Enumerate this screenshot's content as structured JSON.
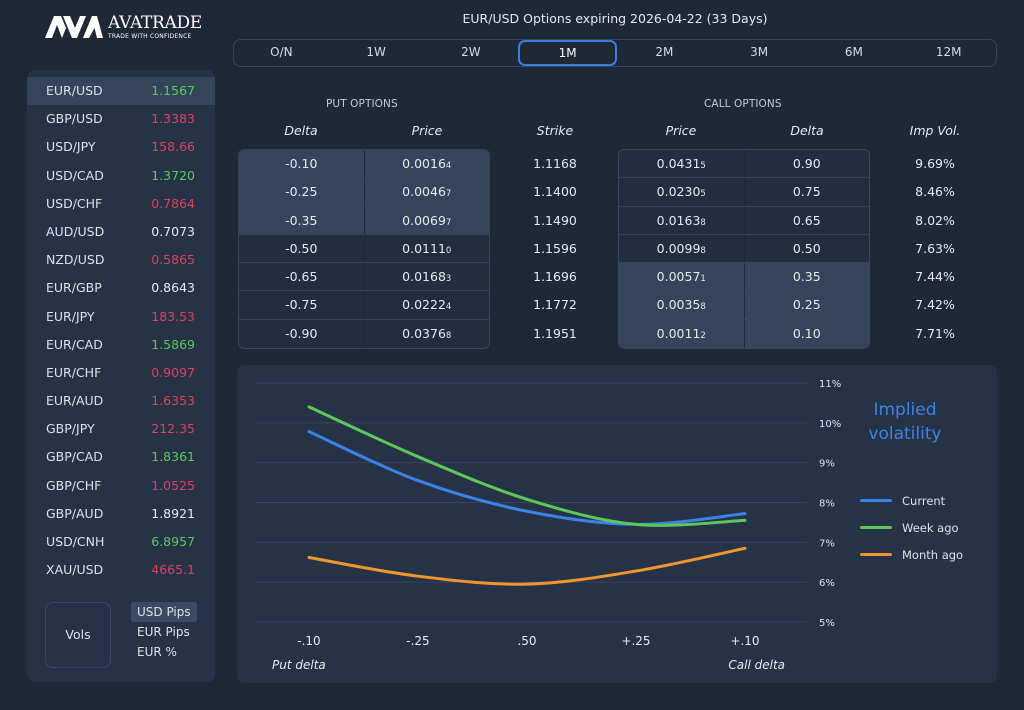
{
  "brand": {
    "name": "AVATRADE",
    "tagline": "TRADE WITH CONFIDENCE",
    "logo_icon": "ava-logo-icon"
  },
  "header": {
    "title": "EUR/USD Options expiring 2026-04-22 (33 Days)"
  },
  "tenors": {
    "items": [
      "O/N",
      "1W",
      "2W",
      "1M",
      "2M",
      "3M",
      "6M",
      "12M"
    ],
    "selected": "1M"
  },
  "colors": {
    "accent": "#3c7ee0",
    "up": "#5cc85a",
    "down": "#e0405a",
    "current": "#3c82e6",
    "week_ago": "#5cc85a",
    "month_ago": "#f0962e"
  },
  "sidebar": {
    "pairs": [
      {
        "name": "EUR/USD",
        "price": "1.1567",
        "trend": "up",
        "active": true
      },
      {
        "name": "GBP/USD",
        "price": "1.3383",
        "trend": "down"
      },
      {
        "name": "USD/JPY",
        "price": "158.66",
        "trend": "down"
      },
      {
        "name": "USD/CAD",
        "price": "1.3720",
        "trend": "up"
      },
      {
        "name": "USD/CHF",
        "price": "0.7864",
        "trend": "down"
      },
      {
        "name": "AUD/USD",
        "price": "0.7073",
        "trend": "flat"
      },
      {
        "name": "NZD/USD",
        "price": "0.5865",
        "trend": "down"
      },
      {
        "name": "EUR/GBP",
        "price": "0.8643",
        "trend": "flat"
      },
      {
        "name": "EUR/JPY",
        "price": "183.53",
        "trend": "down"
      },
      {
        "name": "EUR/CAD",
        "price": "1.5869",
        "trend": "up"
      },
      {
        "name": "EUR/CHF",
        "price": "0.9097",
        "trend": "down"
      },
      {
        "name": "EUR/AUD",
        "price": "1.6353",
        "trend": "down"
      },
      {
        "name": "GBP/JPY",
        "price": "212.35",
        "trend": "down"
      },
      {
        "name": "GBP/CAD",
        "price": "1.8361",
        "trend": "up"
      },
      {
        "name": "GBP/CHF",
        "price": "1.0525",
        "trend": "down"
      },
      {
        "name": "GBP/AUD",
        "price": "1.8921",
        "trend": "flat"
      },
      {
        "name": "USD/CNH",
        "price": "6.8957",
        "trend": "up"
      },
      {
        "name": "XAU/USD",
        "price": "4665.1",
        "trend": "down"
      }
    ],
    "vols_label": "Vols",
    "units": [
      {
        "label": "USD Pips",
        "active": true
      },
      {
        "label": "EUR Pips"
      },
      {
        "label": "EUR %"
      }
    ]
  },
  "options": {
    "put_title": "PUT OPTIONS",
    "call_title": "CALL OPTIONS",
    "headers": {
      "put_delta": "Delta",
      "put_price": "Price",
      "strike": "Strike",
      "call_price": "Price",
      "call_delta": "Delta",
      "imp_vol": "Imp Vol."
    },
    "rows": [
      {
        "put_delta": "-0.10",
        "put_price": "0.0016",
        "put_price_pip": "4",
        "strike": "1.1168",
        "call_price": "0.0431",
        "call_price_pip": "5",
        "call_delta": "0.90",
        "imp_vol": "9.69%"
      },
      {
        "put_delta": "-0.25",
        "put_price": "0.0046",
        "put_price_pip": "7",
        "strike": "1.1400",
        "call_price": "0.0230",
        "call_price_pip": "5",
        "call_delta": "0.75",
        "imp_vol": "8.46%"
      },
      {
        "put_delta": "-0.35",
        "put_price": "0.0069",
        "put_price_pip": "7",
        "strike": "1.1490",
        "call_price": "0.0163",
        "call_price_pip": "8",
        "call_delta": "0.65",
        "imp_vol": "8.02%"
      },
      {
        "put_delta": "-0.50",
        "put_price": "0.0111",
        "put_price_pip": "0",
        "strike": "1.1596",
        "call_price": "0.0099",
        "call_price_pip": "8",
        "call_delta": "0.50",
        "imp_vol": "7.63%"
      },
      {
        "put_delta": "-0.65",
        "put_price": "0.0168",
        "put_price_pip": "3",
        "strike": "1.1696",
        "call_price": "0.0057",
        "call_price_pip": "1",
        "call_delta": "0.35",
        "imp_vol": "7.44%"
      },
      {
        "put_delta": "-0.75",
        "put_price": "0.0222",
        "put_price_pip": "4",
        "strike": "1.1772",
        "call_price": "0.0035",
        "call_price_pip": "8",
        "call_delta": "0.25",
        "imp_vol": "7.42%"
      },
      {
        "put_delta": "-0.90",
        "put_price": "0.0376",
        "put_price_pip": "8",
        "strike": "1.1951",
        "call_price": "0.0011",
        "call_price_pip": "2",
        "call_delta": "0.10",
        "imp_vol": "7.71%"
      }
    ],
    "put_highlight_rows": [
      0,
      1,
      2
    ],
    "call_highlight_rows": [
      4,
      5,
      6
    ]
  },
  "chart_data": {
    "type": "line",
    "title": "Implied volatility",
    "categories": [
      "-.10",
      "-.25",
      ".50",
      "+.25",
      "+.10"
    ],
    "xlabel_left": "Put delta",
    "xlabel_right": "Call delta",
    "ylabel": "",
    "y_ticks": [
      "11%",
      "10%",
      "9%",
      "8%",
      "7%",
      "6%",
      "5%"
    ],
    "ylim": [
      5,
      11
    ],
    "grid": true,
    "legend_position": "right",
    "series": [
      {
        "name": "Current",
        "color": "#3c82e6",
        "values": [
          9.78,
          8.55,
          7.78,
          7.45,
          7.72
        ]
      },
      {
        "name": "Week ago",
        "color": "#5cc85a",
        "values": [
          10.4,
          9.15,
          8.08,
          7.45,
          7.55
        ]
      },
      {
        "name": "Month ago",
        "color": "#f0962e",
        "values": [
          6.62,
          6.15,
          5.95,
          6.28,
          6.85
        ]
      }
    ]
  }
}
